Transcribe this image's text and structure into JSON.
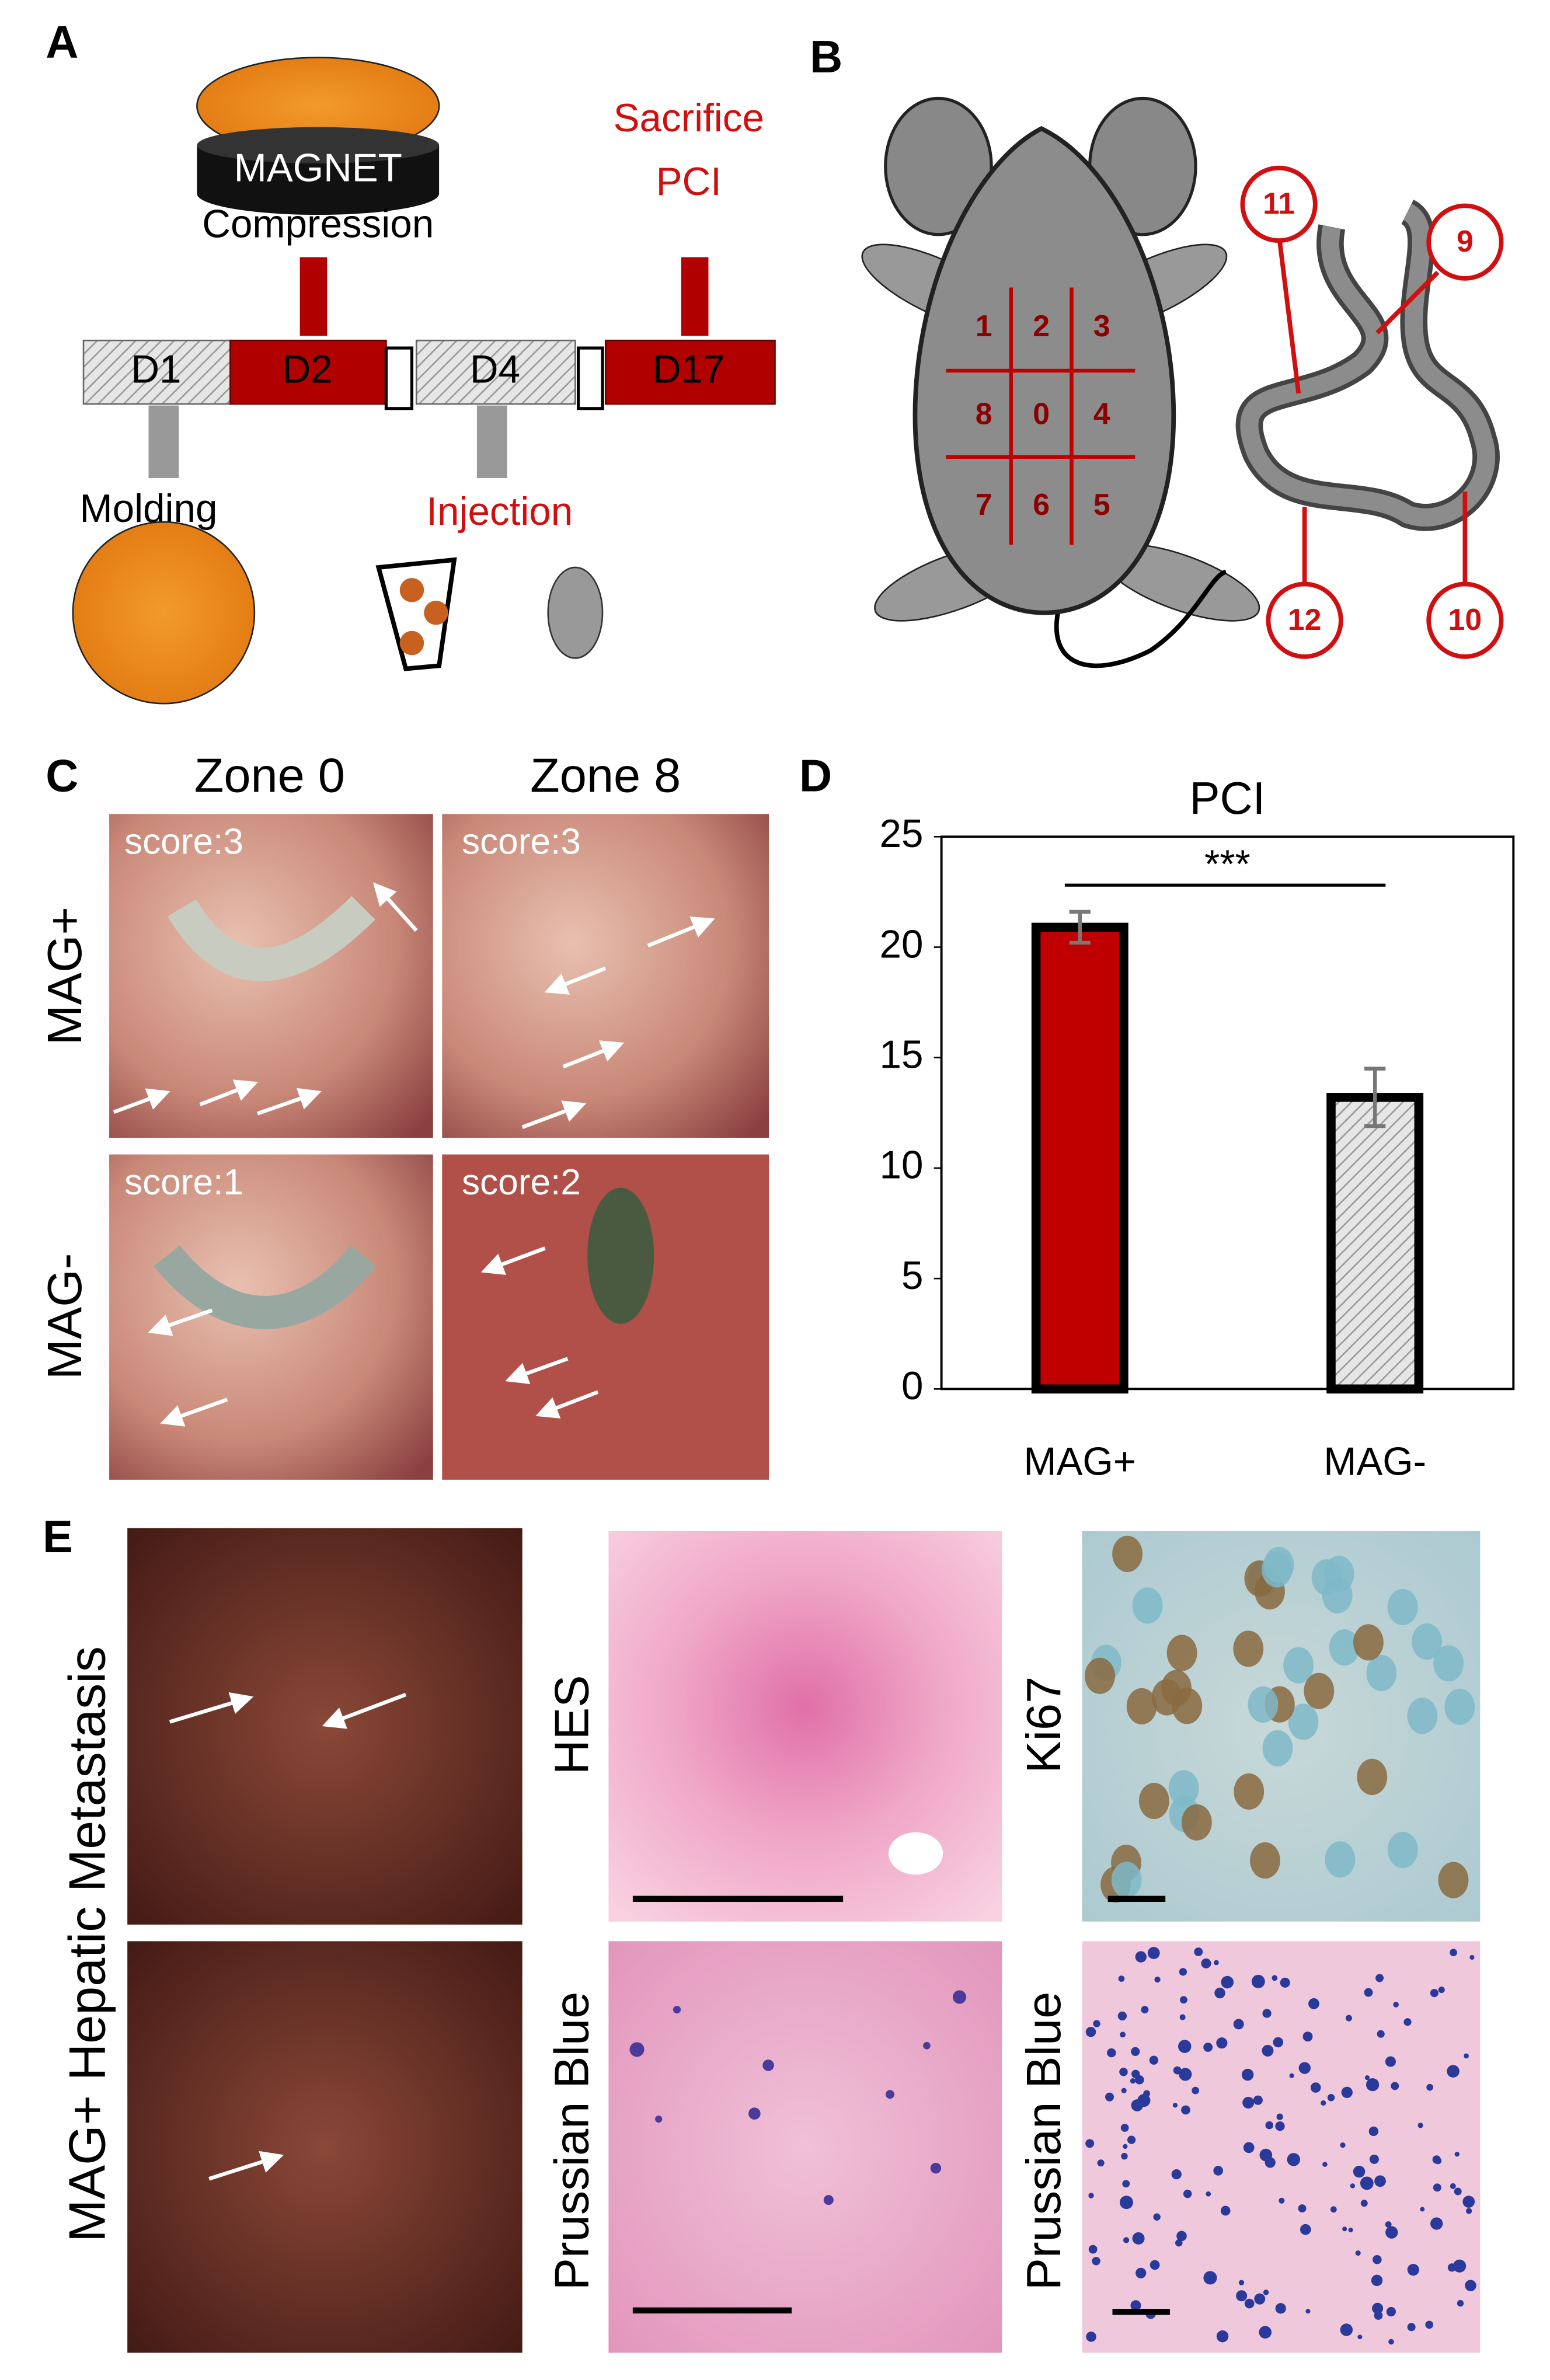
{
  "panels": {
    "a": "A",
    "b": "B",
    "c": "C",
    "d": "D",
    "e": "E"
  },
  "panel_a": {
    "magnet": "MAGNET",
    "compression": "Compression",
    "sacrifice": "Sacrifice",
    "pci": "PCI",
    "days": [
      "D1",
      "D2",
      "D4",
      "D17"
    ],
    "molding": "Molding",
    "injection": "Injection"
  },
  "panel_b": {
    "zones": [
      "1",
      "2",
      "3",
      "8",
      "0",
      "4",
      "7",
      "6",
      "5"
    ],
    "sites": [
      "11",
      "9",
      "12",
      "10"
    ]
  },
  "panel_c": {
    "columns": [
      "Zone 0",
      "Zone 8"
    ],
    "rows": [
      "MAG+",
      "MAG-"
    ],
    "scores": [
      "score:3",
      "score:3",
      "score:1",
      "score:2"
    ]
  },
  "chart_data": {
    "type": "bar",
    "title": "PCI",
    "categories": [
      "MAG+",
      "MAG-"
    ],
    "values": [
      20.9,
      13.2
    ],
    "errors": [
      0.7,
      1.3
    ],
    "colors": [
      "#c00000",
      "#e0e0e0"
    ],
    "hatch": [
      false,
      true
    ],
    "annotation": "***",
    "ylim": [
      0,
      25
    ],
    "yticks": [
      0,
      5,
      10,
      15,
      20,
      25
    ]
  },
  "panel_e": {
    "side_label": "MAG+ Hepatic Metastasis",
    "labels": [
      "HES",
      "Ki67",
      "Prussian Blue",
      "Prussian Blue"
    ]
  }
}
